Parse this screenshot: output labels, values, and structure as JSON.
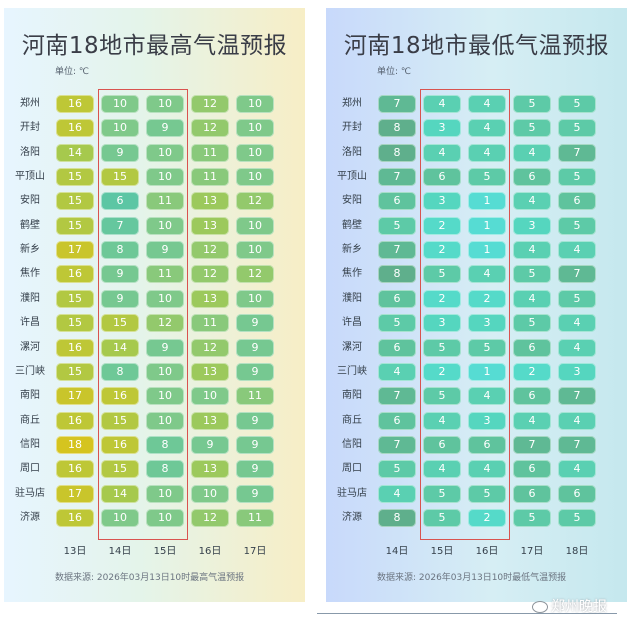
{
  "panels": [
    {
      "id": "high",
      "title": "河南18地市最高气温预报",
      "unit": "单位: ℃",
      "source": "数据来源: 2026年03月13日10时最高气温预报",
      "days": [
        "13日",
        "14日",
        "15日",
        "16日",
        "17日"
      ],
      "highlight_days": [
        "14日",
        "15日"
      ],
      "cities": [
        "郑州",
        "开封",
        "洛阳",
        "平顶山",
        "安阳",
        "鹤壁",
        "新乡",
        "焦作",
        "濮阳",
        "许昌",
        "漯河",
        "三门峡",
        "南阳",
        "商丘",
        "信阳",
        "周口",
        "驻马店",
        "济源"
      ],
      "values": [
        [
          16,
          10,
          10,
          12,
          10
        ],
        [
          16,
          10,
          9,
          12,
          10
        ],
        [
          14,
          9,
          10,
          11,
          10
        ],
        [
          15,
          15,
          10,
          11,
          10
        ],
        [
          15,
          6,
          11,
          13,
          12
        ],
        [
          15,
          7,
          10,
          13,
          10
        ],
        [
          17,
          8,
          9,
          12,
          10
        ],
        [
          16,
          9,
          11,
          12,
          12
        ],
        [
          15,
          9,
          10,
          13,
          10
        ],
        [
          15,
          15,
          12,
          11,
          9
        ],
        [
          16,
          14,
          9,
          12,
          9
        ],
        [
          15,
          8,
          10,
          13,
          9
        ],
        [
          17,
          16,
          10,
          10,
          11
        ],
        [
          16,
          15,
          10,
          13,
          9
        ],
        [
          18,
          16,
          8,
          9,
          9
        ],
        [
          16,
          15,
          8,
          13,
          9
        ],
        [
          17,
          14,
          10,
          10,
          9
        ],
        [
          16,
          10,
          10,
          12,
          11
        ]
      ]
    },
    {
      "id": "low",
      "title": "河南18地市最低气温预报",
      "unit": "单位: ℃",
      "source": "数据来源: 2026年03月13日10时最低气温预报",
      "days": [
        "14日",
        "15日",
        "16日",
        "17日",
        "18日"
      ],
      "highlight_days": [
        "15日",
        "16日"
      ],
      "cities": [
        "郑州",
        "开封",
        "洛阳",
        "平顶山",
        "安阳",
        "鹤壁",
        "新乡",
        "焦作",
        "濮阳",
        "许昌",
        "漯河",
        "三门峡",
        "南阳",
        "商丘",
        "信阳",
        "周口",
        "驻马店",
        "济源"
      ],
      "values": [
        [
          7,
          4,
          4,
          5,
          5
        ],
        [
          8,
          3,
          4,
          5,
          5
        ],
        [
          8,
          4,
          4,
          4,
          7
        ],
        [
          7,
          6,
          5,
          6,
          5
        ],
        [
          6,
          3,
          1,
          4,
          6
        ],
        [
          5,
          2,
          1,
          3,
          5
        ],
        [
          7,
          2,
          1,
          4,
          4
        ],
        [
          8,
          5,
          4,
          5,
          7
        ],
        [
          6,
          2,
          2,
          4,
          5
        ],
        [
          5,
          3,
          3,
          5,
          4
        ],
        [
          6,
          5,
          5,
          6,
          4
        ],
        [
          4,
          2,
          1,
          2,
          3
        ],
        [
          7,
          5,
          4,
          6,
          7
        ],
        [
          6,
          4,
          3,
          4,
          4
        ],
        [
          7,
          6,
          6,
          7,
          7
        ],
        [
          5,
          4,
          4,
          6,
          4
        ],
        [
          4,
          5,
          5,
          6,
          6
        ],
        [
          8,
          5,
          2,
          5,
          5
        ]
      ]
    }
  ],
  "chart_data": [
    {
      "type": "table",
      "title": "河南18地市最高气温预报",
      "unit": "℃",
      "columns": [
        "13日",
        "14日",
        "15日",
        "16日",
        "17日"
      ],
      "rows": [
        "郑州",
        "开封",
        "洛阳",
        "平顶山",
        "安阳",
        "鹤壁",
        "新乡",
        "焦作",
        "濮阳",
        "许昌",
        "漯河",
        "三门峡",
        "南阳",
        "商丘",
        "信阳",
        "周口",
        "驻马店",
        "济源"
      ]
    },
    {
      "type": "table",
      "title": "河南18地市最低气温预报",
      "unit": "℃",
      "columns": [
        "14日",
        "15日",
        "16日",
        "17日",
        "18日"
      ],
      "rows": [
        "郑州",
        "开封",
        "洛阳",
        "平顶山",
        "安阳",
        "鹤壁",
        "新乡",
        "焦作",
        "濮阳",
        "许昌",
        "漯河",
        "三门峡",
        "南阳",
        "商丘",
        "信阳",
        "周口",
        "驻马店",
        "济源"
      ]
    }
  ],
  "watermark": "郑州晚报",
  "colors": {
    "highlight_border": "#d9534f",
    "high_scale": [
      "#5cc6a4",
      "#7fc98a",
      "#a6c94d",
      "#d5c41f"
    ],
    "low_scale": [
      "#56dcd3",
      "#54d8c2",
      "#5ccdac",
      "#5fc19a",
      "#5faf8c"
    ]
  }
}
